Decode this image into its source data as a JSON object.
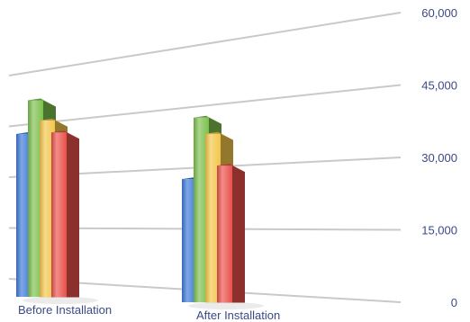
{
  "chart_data": {
    "type": "bar",
    "style": "3d-perspective",
    "categories": [
      "Before Installation",
      "After Installation"
    ],
    "series": [
      {
        "color": "#3b78d8",
        "values": [
          41000,
          31000
        ]
      },
      {
        "color": "#7cc04d",
        "values": [
          49500,
          46500
        ]
      },
      {
        "color": "#f3c64a",
        "values": [
          44500,
          42500
        ]
      },
      {
        "color": "#e8504a",
        "values": [
          41500,
          34500
        ]
      }
    ],
    "ylim": [
      0,
      60000
    ],
    "y_ticks": [
      0,
      15000,
      30000,
      45000,
      60000
    ],
    "y_tick_labels": [
      "0",
      "15,000",
      "30,000",
      "45,000",
      "60,000"
    ],
    "y_axis_side": "right",
    "grid": true,
    "legend": "none",
    "title": "",
    "xlabel": "",
    "ylabel": ""
  }
}
